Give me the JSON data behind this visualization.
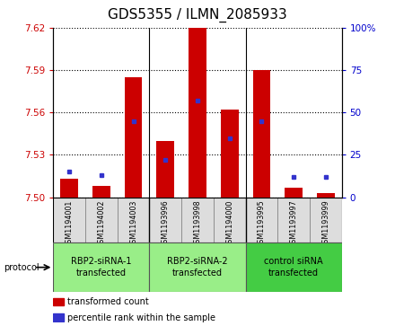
{
  "title": "GDS5355 / ILMN_2085933",
  "samples": [
    "GSM1194001",
    "GSM1194002",
    "GSM1194003",
    "GSM1193996",
    "GSM1193998",
    "GSM1194000",
    "GSM1193995",
    "GSM1193997",
    "GSM1193999"
  ],
  "red_values": [
    7.513,
    7.508,
    7.585,
    7.54,
    7.62,
    7.562,
    7.59,
    7.507,
    7.503
  ],
  "blue_values_pct": [
    15,
    13,
    45,
    22,
    57,
    35,
    45,
    12,
    12
  ],
  "y_min": 7.5,
  "y_max": 7.62,
  "y_ticks": [
    7.5,
    7.53,
    7.56,
    7.59,
    7.62
  ],
  "y2_ticks": [
    0,
    25,
    50,
    75,
    100
  ],
  "bar_color": "#cc0000",
  "dot_color": "#3333cc",
  "groups": [
    {
      "label": "RBP2-siRNA-1\ntransfected",
      "indices": [
        0,
        1,
        2
      ],
      "color": "#99ee88"
    },
    {
      "label": "RBP2-siRNA-2\ntransfected",
      "indices": [
        3,
        4,
        5
      ],
      "color": "#99ee88"
    },
    {
      "label": "control siRNA\ntransfected",
      "indices": [
        6,
        7,
        8
      ],
      "color": "#44cc44"
    }
  ],
  "protocol_label": "protocol",
  "legend_red": "transformed count",
  "legend_blue": "percentile rank within the sample",
  "bar_width": 0.55,
  "sample_cell_bg": "#dddddd",
  "plot_bg_color": "#ffffff",
  "title_fontsize": 11
}
